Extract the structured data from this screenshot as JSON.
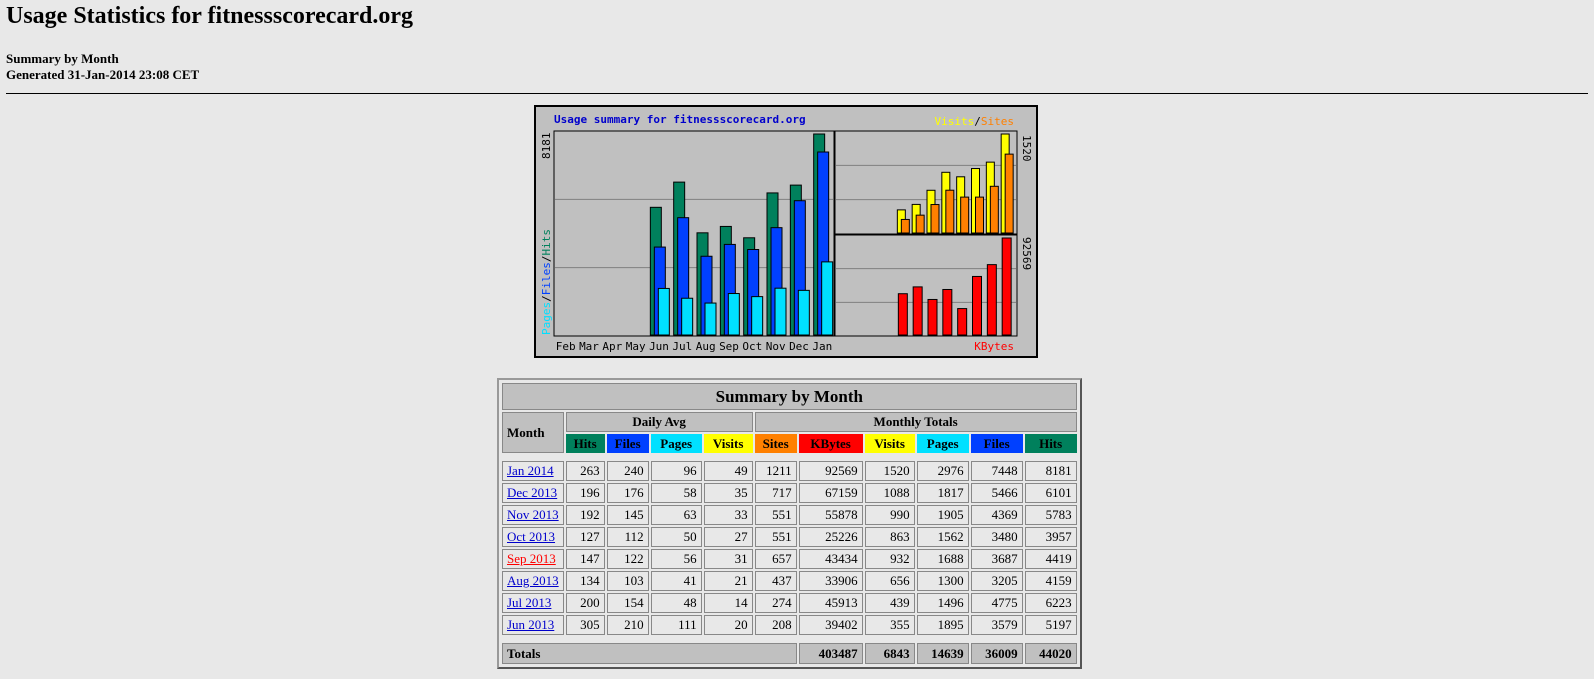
{
  "page": {
    "title": "Usage Statistics for fitnessscorecard.org",
    "subtitle": "Summary by Month",
    "generated": "Generated 31-Jan-2014 23:08 CET"
  },
  "chart": {
    "title": "Usage summary for fitnessscorecard.org",
    "legend_right_visits": "Visits",
    "legend_right_sep": "/",
    "legend_right_sites": "Sites",
    "legend_left_pages": "Pages",
    "legend_left_files": "Files",
    "legend_left_hits": "Hits",
    "legend_sep": "/",
    "kbytes_label": "KBytes",
    "max_hits_label": "8181",
    "max_visits_label": "1520",
    "max_kbytes_label": "92569",
    "months": [
      "Feb",
      "Mar",
      "Apr",
      "May",
      "Jun",
      "Jul",
      "Aug",
      "Sep",
      "Oct",
      "Nov",
      "Dec",
      "Jan"
    ],
    "colors": {
      "hits": "#00805c",
      "files": "#0040ff",
      "pages": "#00e0ff",
      "visits": "#ffff00",
      "sites": "#ff8000",
      "kbytes": "#ff0000",
      "title": "#0000cc"
    }
  },
  "chart_data": {
    "type": "bar",
    "title": "Usage summary for fitnessscorecard.org",
    "categories": [
      "Feb",
      "Mar",
      "Apr",
      "May",
      "Jun",
      "Jul",
      "Aug",
      "Sep",
      "Oct",
      "Nov",
      "Dec",
      "Jan"
    ],
    "series": [
      {
        "name": "Hits",
        "values": [
          0,
          0,
          0,
          0,
          5197,
          6223,
          4159,
          4419,
          3957,
          5783,
          6101,
          8181
        ]
      },
      {
        "name": "Files",
        "values": [
          0,
          0,
          0,
          0,
          3579,
          4775,
          3205,
          3687,
          3480,
          4369,
          5466,
          7448
        ]
      },
      {
        "name": "Pages",
        "values": [
          0,
          0,
          0,
          0,
          1895,
          1496,
          1300,
          1688,
          1562,
          1905,
          1817,
          2976
        ]
      },
      {
        "name": "Visits",
        "values": [
          0,
          0,
          0,
          0,
          355,
          439,
          656,
          932,
          863,
          990,
          1088,
          1520
        ]
      },
      {
        "name": "Sites",
        "values": [
          0,
          0,
          0,
          0,
          208,
          274,
          437,
          657,
          551,
          551,
          717,
          1211
        ]
      },
      {
        "name": "KBytes",
        "values": [
          0,
          0,
          0,
          0,
          39402,
          45913,
          33906,
          43434,
          25226,
          55878,
          67159,
          92569
        ]
      }
    ]
  },
  "table": {
    "title": "Summary by Month",
    "month_header": "Month",
    "daily_avg_header": "Daily Avg",
    "monthly_totals_header": "Monthly Totals",
    "col_hits": "Hits",
    "col_files": "Files",
    "col_pages": "Pages",
    "col_visits": "Visits",
    "col_sites": "Sites",
    "col_kbytes": "KBytes",
    "rows": [
      {
        "month": "Jan 2014",
        "link_color": "blue",
        "d_hits": "263",
        "d_files": "240",
        "d_pages": "96",
        "d_visits": "49",
        "sites": "1211",
        "kbytes": "92569",
        "visits": "1520",
        "pages": "2976",
        "files": "7448",
        "hits": "8181"
      },
      {
        "month": "Dec 2013",
        "link_color": "blue",
        "d_hits": "196",
        "d_files": "176",
        "d_pages": "58",
        "d_visits": "35",
        "sites": "717",
        "kbytes": "67159",
        "visits": "1088",
        "pages": "1817",
        "files": "5466",
        "hits": "6101"
      },
      {
        "month": "Nov 2013",
        "link_color": "blue",
        "d_hits": "192",
        "d_files": "145",
        "d_pages": "63",
        "d_visits": "33",
        "sites": "551",
        "kbytes": "55878",
        "visits": "990",
        "pages": "1905",
        "files": "4369",
        "hits": "5783"
      },
      {
        "month": "Oct 2013",
        "link_color": "blue",
        "d_hits": "127",
        "d_files": "112",
        "d_pages": "50",
        "d_visits": "27",
        "sites": "551",
        "kbytes": "25226",
        "visits": "863",
        "pages": "1562",
        "files": "3480",
        "hits": "3957"
      },
      {
        "month": "Sep 2013",
        "link_color": "red",
        "d_hits": "147",
        "d_files": "122",
        "d_pages": "56",
        "d_visits": "31",
        "sites": "657",
        "kbytes": "43434",
        "visits": "932",
        "pages": "1688",
        "files": "3687",
        "hits": "4419"
      },
      {
        "month": "Aug 2013",
        "link_color": "blue",
        "d_hits": "134",
        "d_files": "103",
        "d_pages": "41",
        "d_visits": "21",
        "sites": "437",
        "kbytes": "33906",
        "visits": "656",
        "pages": "1300",
        "files": "3205",
        "hits": "4159"
      },
      {
        "month": "Jul 2013",
        "link_color": "blue",
        "d_hits": "200",
        "d_files": "154",
        "d_pages": "48",
        "d_visits": "14",
        "sites": "274",
        "kbytes": "45913",
        "visits": "439",
        "pages": "1496",
        "files": "4775",
        "hits": "6223"
      },
      {
        "month": "Jun 2013",
        "link_color": "blue",
        "d_hits": "305",
        "d_files": "210",
        "d_pages": "111",
        "d_visits": "20",
        "sites": "208",
        "kbytes": "39402",
        "visits": "355",
        "pages": "1895",
        "files": "3579",
        "hits": "5197"
      }
    ],
    "totals": {
      "label": "Totals",
      "kbytes": "403487",
      "visits": "6843",
      "pages": "14639",
      "files": "36009",
      "hits": "44020"
    }
  }
}
